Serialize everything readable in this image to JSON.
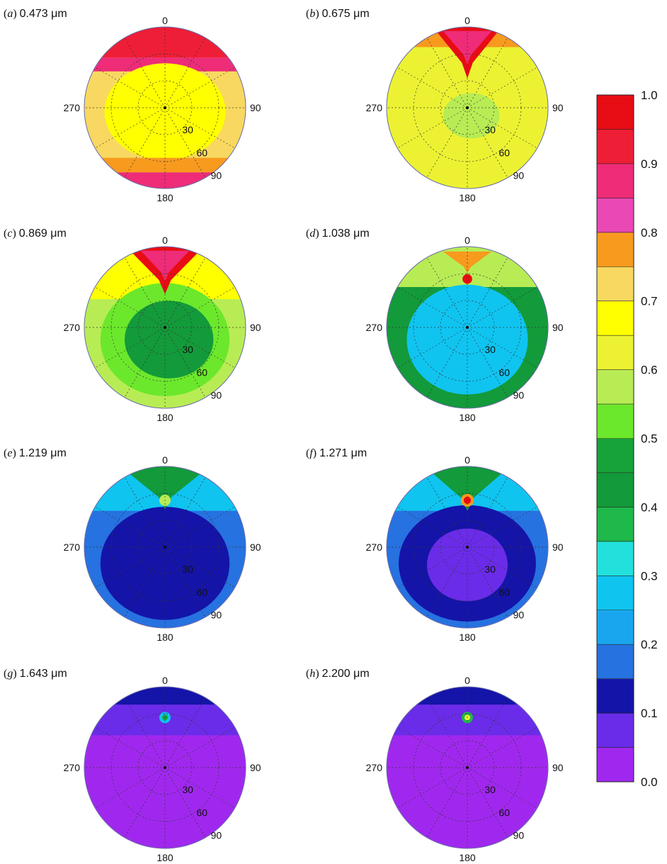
{
  "chart_data": {
    "type": "heatmap",
    "projection": "polar",
    "azimuth_labels": [
      "0",
      "90",
      "180",
      "270"
    ],
    "zenith_labels": [
      "30",
      "60",
      "90"
    ],
    "zenith_range": [
      0,
      90
    ],
    "colorbar": {
      "ticks": [
        "0.0",
        "0.1",
        "0.2",
        "0.3",
        "0.4",
        "0.5",
        "0.6",
        "0.7",
        "0.8",
        "0.9",
        "1.0"
      ],
      "range": [
        0,
        1
      ],
      "step": 0.05,
      "colors": [
        "#a028ee",
        "#6a2ce8",
        "#1414a8",
        "#2672e0",
        "#1aa6ee",
        "#10c4f0",
        "#22e0dc",
        "#1fb84a",
        "#139a3a",
        "#18a23a",
        "#6ce82c",
        "#b8ec54",
        "#ecf232",
        "#ffff00",
        "#f8d860",
        "#f79a1e",
        "#ea48b4",
        "#ee2c78",
        "#ee1e36",
        "#e80c14"
      ]
    },
    "panels": [
      {
        "letter": "a",
        "wavelength": "0.473 μm",
        "unit_note": "",
        "background": 0.74,
        "fields": [
          {
            "type": "band",
            "from": -1.0,
            "to": -0.62,
            "value": 0.93
          },
          {
            "type": "band",
            "from": -0.62,
            "to": -0.45,
            "value": 0.88
          },
          {
            "type": "ellipse",
            "x": 0.0,
            "y": 0.05,
            "rx": 0.75,
            "ry": 0.6,
            "value": 0.69
          },
          {
            "type": "ellipse",
            "x": 0.0,
            "y": 0.05,
            "rx": 0.55,
            "ry": 0.42,
            "value": 0.66
          },
          {
            "type": "band",
            "from": 0.62,
            "to": 0.8,
            "value": 0.76
          },
          {
            "type": "band",
            "from": 0.8,
            "to": 1.0,
            "value": 0.86
          }
        ]
      },
      {
        "letter": "b",
        "wavelength": "0.675 μm",
        "unit_note": "",
        "background": 0.64,
        "fields": [
          {
            "type": "band",
            "from": -1.0,
            "to": -0.75,
            "value": 0.76
          },
          {
            "type": "ellipse",
            "x": 0.05,
            "y": 0.1,
            "rx": 0.35,
            "ry": 0.28,
            "value": 0.58
          },
          {
            "type": "plume",
            "x": 0.0,
            "y": -0.68,
            "w": 0.45,
            "h": 0.35,
            "value": 0.96
          },
          {
            "type": "plume",
            "x": 0.0,
            "y": -0.73,
            "w": 0.3,
            "h": 0.22,
            "value": 0.88
          }
        ]
      },
      {
        "letter": "c",
        "wavelength": "0.869 μm",
        "unit_note": "",
        "background": 0.58,
        "fields": [
          {
            "type": "band",
            "from": -1.0,
            "to": -0.35,
            "value": 0.66
          },
          {
            "type": "ellipse",
            "x": 0.0,
            "y": 0.15,
            "rx": 0.8,
            "ry": 0.7,
            "value": 0.53
          },
          {
            "type": "ellipse",
            "x": 0.05,
            "y": 0.15,
            "rx": 0.55,
            "ry": 0.48,
            "value": 0.44
          },
          {
            "type": "plume",
            "x": 0.0,
            "y": -0.7,
            "w": 0.5,
            "h": 0.32,
            "value": 0.96
          },
          {
            "type": "plume",
            "x": 0.0,
            "y": -0.75,
            "w": 0.3,
            "h": 0.2,
            "value": 0.88
          }
        ]
      },
      {
        "letter": "d",
        "wavelength": "1.038 μm",
        "unit_note": "",
        "background": 0.42,
        "fields": [
          {
            "type": "band",
            "from": -1.0,
            "to": -0.5,
            "value": 0.58
          },
          {
            "type": "ellipse",
            "x": 0.0,
            "y": 0.15,
            "rx": 0.75,
            "ry": 0.68,
            "value": 0.3
          },
          {
            "type": "ellipse",
            "x": 0.0,
            "y": 0.15,
            "rx": 0.55,
            "ry": 0.5,
            "value": 0.28
          },
          {
            "type": "spot",
            "x": 0.0,
            "y": -0.6,
            "r": 0.06,
            "value": 0.98
          },
          {
            "type": "plume",
            "x": 0.0,
            "y": -0.8,
            "w": 0.3,
            "h": 0.14,
            "value": 0.76
          }
        ]
      },
      {
        "letter": "e",
        "wavelength": "1.219 μm",
        "unit_note": "",
        "background": 0.18,
        "fields": [
          {
            "type": "band",
            "from": -1.0,
            "to": -0.45,
            "value": 0.26
          },
          {
            "type": "ellipse",
            "x": 0.0,
            "y": 0.2,
            "rx": 0.8,
            "ry": 0.7,
            "value": 0.13
          },
          {
            "type": "ellipse",
            "x": 0.02,
            "y": 0.2,
            "rx": 0.6,
            "ry": 0.55,
            "value": 0.11
          },
          {
            "type": "plume",
            "x": 0.0,
            "y": -0.72,
            "w": 0.55,
            "h": 0.28,
            "value": 0.43
          },
          {
            "type": "spot",
            "x": 0.0,
            "y": -0.58,
            "r": 0.07,
            "value": 0.6
          }
        ]
      },
      {
        "letter": "f",
        "wavelength": "1.271 μm",
        "unit_note": "",
        "background": 0.16,
        "fields": [
          {
            "type": "band",
            "from": -1.0,
            "to": -0.45,
            "value": 0.25
          },
          {
            "type": "ellipse",
            "x": 0.0,
            "y": 0.2,
            "rx": 0.85,
            "ry": 0.72,
            "value": 0.11
          },
          {
            "type": "ellipse",
            "x": 0.0,
            "y": 0.22,
            "rx": 0.5,
            "ry": 0.45,
            "value": 0.08
          },
          {
            "type": "plume",
            "x": 0.0,
            "y": -0.72,
            "w": 0.55,
            "h": 0.3,
            "value": 0.42
          },
          {
            "type": "spot",
            "x": 0.0,
            "y": -0.58,
            "r": 0.08,
            "value": 0.78
          },
          {
            "type": "spot",
            "x": 0.0,
            "y": -0.58,
            "r": 0.045,
            "value": 0.97
          }
        ]
      },
      {
        "letter": "g",
        "wavelength": "1.643 μm",
        "unit_note": "",
        "background": 0.02,
        "fields": [
          {
            "type": "band",
            "from": -1.0,
            "to": -0.4,
            "value": 0.07
          },
          {
            "type": "band",
            "from": -1.0,
            "to": -0.78,
            "value": 0.11
          },
          {
            "type": "spot",
            "x": 0.0,
            "y": -0.62,
            "r": 0.07,
            "value": 0.3
          },
          {
            "type": "spot",
            "x": 0.0,
            "y": -0.62,
            "r": 0.035,
            "value": 0.48
          }
        ]
      },
      {
        "letter": "h",
        "wavelength": "2.200 μm",
        "unit_note": "",
        "background": 0.02,
        "fields": [
          {
            "type": "band",
            "from": -1.0,
            "to": -0.4,
            "value": 0.07
          },
          {
            "type": "band",
            "from": -1.0,
            "to": -0.78,
            "value": 0.11
          },
          {
            "type": "spot",
            "x": 0.0,
            "y": -0.62,
            "r": 0.07,
            "value": 0.38
          },
          {
            "type": "spot",
            "x": 0.0,
            "y": -0.62,
            "r": 0.035,
            "value": 0.62
          }
        ]
      }
    ]
  }
}
